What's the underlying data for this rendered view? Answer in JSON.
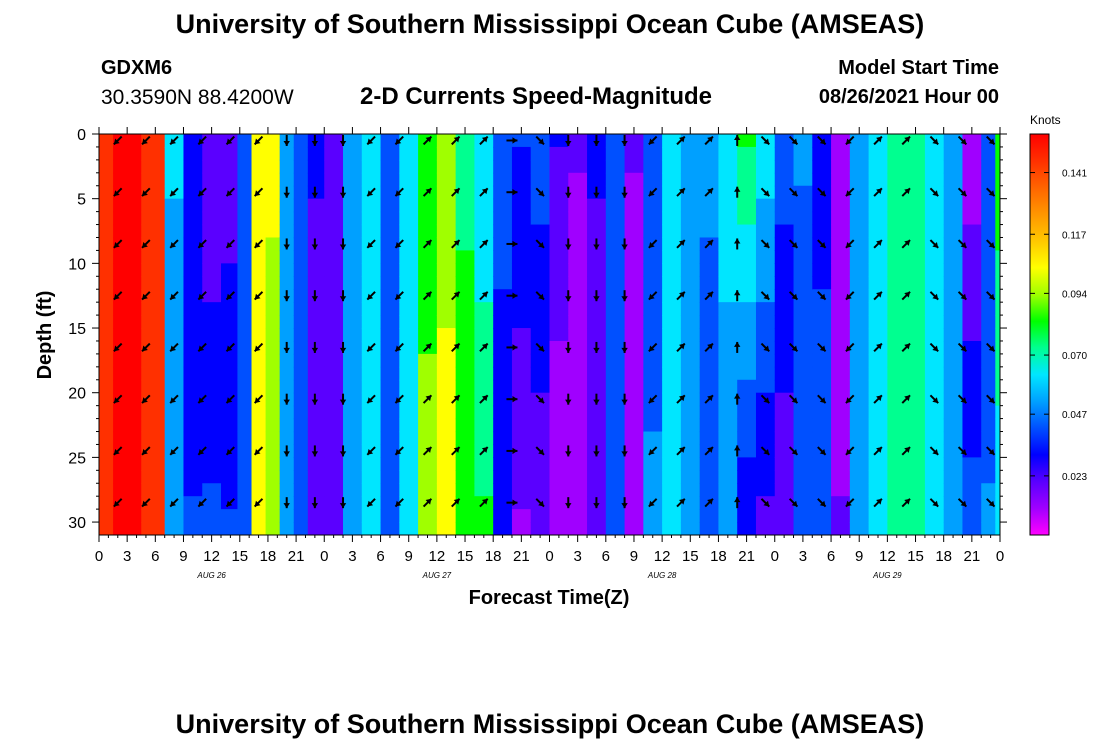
{
  "header": {
    "title": "University of Southern Mississippi Ocean Cube (AMSEAS)",
    "footer_title": "University of Southern Mississippi Ocean Cube (AMSEAS)",
    "station_id": "GDXM6",
    "coordinates": "30.3590N  88.4200W",
    "plot_title": "2-D Currents Speed-Magnitude",
    "model_start_label": "Model Start Time",
    "model_start_value": "08/26/2021 Hour 00"
  },
  "colors": {
    "colormap": [
      "#ff00ff",
      "#a000ff",
      "#5a00ff",
      "#0000ff",
      "#0050ff",
      "#00a0ff",
      "#00e6ff",
      "#00ff90",
      "#00ff00",
      "#a0ff00",
      "#ffff00",
      "#ffc800",
      "#ff9600",
      "#ff6400",
      "#ff3000",
      "#ff0000"
    ],
    "arrow": "#000000",
    "bar_edge": "#ff0000"
  },
  "chart_data": {
    "type": "heatmap",
    "title": "2-D Currents Speed-Magnitude",
    "xlabel": "Forecast Time(Z)",
    "ylabel": "Depth (ft)",
    "xlim": [
      0,
      96
    ],
    "ylim": [
      31,
      0
    ],
    "x_ticks": [
      0,
      3,
      6,
      9,
      12,
      15,
      18,
      21,
      24,
      27,
      30,
      33,
      36,
      39,
      42,
      45,
      48,
      51,
      54,
      57,
      60,
      63,
      66,
      69,
      72,
      75,
      78,
      81,
      84,
      87,
      90,
      93,
      96
    ],
    "x_tick_labels": [
      "0",
      "3",
      "6",
      "9",
      "12",
      "15",
      "18",
      "21",
      "0",
      "3",
      "6",
      "9",
      "12",
      "15",
      "18",
      "21",
      "0",
      "3",
      "6",
      "9",
      "12",
      "15",
      "18",
      "21",
      "0",
      "3",
      "6",
      "9",
      "12",
      "15",
      "18",
      "21",
      "0"
    ],
    "day_labels": [
      {
        "x": 12,
        "label": "AUG 26"
      },
      {
        "x": 36,
        "label": "AUG 27"
      },
      {
        "x": 60,
        "label": "AUG 28"
      },
      {
        "x": 84,
        "label": "AUG 29"
      }
    ],
    "y_ticks": [
      0,
      5,
      10,
      15,
      20,
      25,
      30
    ],
    "y_tick_labels": [
      "0",
      "5",
      "10",
      "15",
      "20",
      "25",
      "30"
    ],
    "colorbar": {
      "unit": "Knots",
      "min": 0.0,
      "max": 0.156,
      "tick_values": [
        0.023,
        0.047,
        0.07,
        0.094,
        0.117,
        0.141
      ],
      "tick_labels": [
        "0.023",
        "0.047",
        "0.070",
        "0.094",
        "0.117",
        "0.141"
      ]
    },
    "speed_columns": [
      {
        "x": 0,
        "top": 0.14,
        "bottom": 0.14
      },
      {
        "x": 3,
        "top": 0.15,
        "bottom": 0.15
      },
      {
        "x": 6,
        "top": 0.145,
        "bottom": 0.145
      },
      {
        "x": 8,
        "top": 0.06,
        "bottom": 0.05
      },
      {
        "x": 10,
        "top": 0.03,
        "bottom": 0.04
      },
      {
        "x": 12,
        "top": 0.02,
        "bottom": 0.042
      },
      {
        "x": 14,
        "top": 0.024,
        "bottom": 0.04
      },
      {
        "x": 15.5,
        "top": 0.04,
        "bottom": 0.045
      },
      {
        "x": 17,
        "top": 0.105,
        "bottom": 0.1
      },
      {
        "x": 18.5,
        "top": 0.1,
        "bottom": 0.09
      },
      {
        "x": 20,
        "top": 0.055,
        "bottom": 0.05
      },
      {
        "x": 21.5,
        "top": 0.042,
        "bottom": 0.04
      },
      {
        "x": 23,
        "top": 0.03,
        "bottom": 0.025
      },
      {
        "x": 25,
        "top": 0.02,
        "bottom": 0.02
      },
      {
        "x": 27,
        "top": 0.05,
        "bottom": 0.05
      },
      {
        "x": 29,
        "top": 0.065,
        "bottom": 0.065
      },
      {
        "x": 31,
        "top": 0.04,
        "bottom": 0.04
      },
      {
        "x": 33,
        "top": 0.06,
        "bottom": 0.06
      },
      {
        "x": 35,
        "top": 0.085,
        "bottom": 0.09
      },
      {
        "x": 37,
        "top": 0.095,
        "bottom": 0.1
      },
      {
        "x": 39,
        "top": 0.075,
        "bottom": 0.085
      },
      {
        "x": 41,
        "top": 0.06,
        "bottom": 0.08
      },
      {
        "x": 43,
        "top": 0.045,
        "bottom": 0.03
      },
      {
        "x": 45,
        "top": 0.04,
        "bottom": 0.018
      },
      {
        "x": 47,
        "top": 0.045,
        "bottom": 0.02
      },
      {
        "x": 49,
        "top": 0.03,
        "bottom": 0.01
      },
      {
        "x": 51,
        "top": 0.02,
        "bottom": 0.015
      },
      {
        "x": 53,
        "top": 0.03,
        "bottom": 0.025
      },
      {
        "x": 55,
        "top": 0.04,
        "bottom": 0.04
      },
      {
        "x": 57,
        "top": 0.02,
        "bottom": 0.015
      },
      {
        "x": 59,
        "top": 0.045,
        "bottom": 0.05
      },
      {
        "x": 61,
        "top": 0.06,
        "bottom": 0.06
      },
      {
        "x": 63,
        "top": 0.055,
        "bottom": 0.05
      },
      {
        "x": 65,
        "top": 0.05,
        "bottom": 0.045
      },
      {
        "x": 67,
        "top": 0.065,
        "bottom": 0.05
      },
      {
        "x": 69,
        "top": 0.08,
        "bottom": 0.03
      },
      {
        "x": 71,
        "top": 0.065,
        "bottom": 0.025
      },
      {
        "x": 73,
        "top": 0.045,
        "bottom": 0.02
      },
      {
        "x": 75,
        "top": 0.05,
        "bottom": 0.04
      },
      {
        "x": 77,
        "top": 0.035,
        "bottom": 0.045
      },
      {
        "x": 79,
        "top": 0.015,
        "bottom": 0.02
      },
      {
        "x": 81,
        "top": 0.05,
        "bottom": 0.055
      },
      {
        "x": 83,
        "top": 0.068,
        "bottom": 0.065
      },
      {
        "x": 85,
        "top": 0.075,
        "bottom": 0.075
      },
      {
        "x": 87,
        "top": 0.072,
        "bottom": 0.07
      },
      {
        "x": 89,
        "top": 0.065,
        "bottom": 0.062
      },
      {
        "x": 91,
        "top": 0.05,
        "bottom": 0.055
      },
      {
        "x": 93,
        "top": 0.012,
        "bottom": 0.045
      },
      {
        "x": 95,
        "top": 0.04,
        "bottom": 0.05
      },
      {
        "x": 96,
        "top": 0.085,
        "bottom": 0.06
      }
    ],
    "arrow_depths": [
      0.5,
      4.5,
      8.5,
      12.5,
      16.5,
      20.5,
      24.5,
      28.5
    ],
    "arrow_directions": [
      {
        "x": 2,
        "dir": "sw"
      },
      {
        "x": 5,
        "dir": "sw"
      },
      {
        "x": 8,
        "dir": "sw"
      },
      {
        "x": 11,
        "dir": "sw"
      },
      {
        "x": 14,
        "dir": "sw"
      },
      {
        "x": 17,
        "dir": "sw"
      },
      {
        "x": 20,
        "dir": "s"
      },
      {
        "x": 23,
        "dir": "s"
      },
      {
        "x": 26,
        "dir": "s"
      },
      {
        "x": 29,
        "dir": "sw"
      },
      {
        "x": 32,
        "dir": "sw"
      },
      {
        "x": 35,
        "dir": "ne"
      },
      {
        "x": 38,
        "dir": "ne"
      },
      {
        "x": 41,
        "dir": "ne"
      },
      {
        "x": 44,
        "dir": "e"
      },
      {
        "x": 47,
        "dir": "se"
      },
      {
        "x": 50,
        "dir": "s"
      },
      {
        "x": 53,
        "dir": "s"
      },
      {
        "x": 56,
        "dir": "s"
      },
      {
        "x": 59,
        "dir": "sw"
      },
      {
        "x": 62,
        "dir": "ne"
      },
      {
        "x": 65,
        "dir": "ne"
      },
      {
        "x": 68,
        "dir": "n"
      },
      {
        "x": 71,
        "dir": "se"
      },
      {
        "x": 74,
        "dir": "se"
      },
      {
        "x": 77,
        "dir": "se"
      },
      {
        "x": 80,
        "dir": "sw"
      },
      {
        "x": 83,
        "dir": "ne"
      },
      {
        "x": 86,
        "dir": "ne"
      },
      {
        "x": 89,
        "dir": "se"
      },
      {
        "x": 92,
        "dir": "se"
      },
      {
        "x": 95,
        "dir": "se"
      }
    ]
  }
}
